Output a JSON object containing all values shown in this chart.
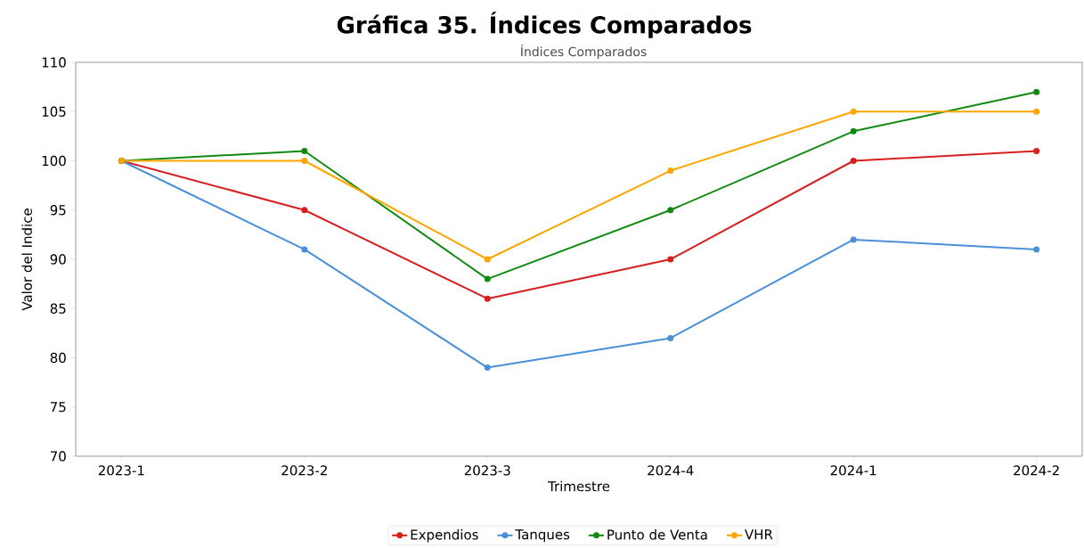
{
  "chart_data": {
    "type": "line",
    "title": "Gráfica 35. Índices Comparados",
    "subtitle": "Índices Comparados",
    "xlabel": "Trimestre",
    "ylabel": "Valor del Indice",
    "categories": [
      "2023-1",
      "2023-2",
      "2023-3",
      "2024-4",
      "2024-1",
      "2024-2"
    ],
    "series": [
      {
        "name": "Expendios",
        "color": "#d62020",
        "values": [
          100,
          95,
          86,
          90,
          100,
          101
        ]
      },
      {
        "name": "Tanques",
        "color": "#4a90d9",
        "values": [
          100,
          91,
          79,
          82,
          92,
          91
        ]
      },
      {
        "name": "Punto de Venta",
        "color": "#108a10",
        "values": [
          100,
          101,
          88,
          95,
          103,
          107
        ]
      },
      {
        "name": "VHR",
        "color": "#ffa500",
        "values": [
          100,
          100,
          90,
          99,
          105,
          105
        ]
      }
    ],
    "ylim": [
      70,
      110
    ],
    "yticks": [
      70,
      75,
      80,
      85,
      90,
      95,
      100,
      105,
      110
    ],
    "grid": false,
    "legend": "bottom",
    "marker": "circle",
    "line_style": "solid"
  }
}
